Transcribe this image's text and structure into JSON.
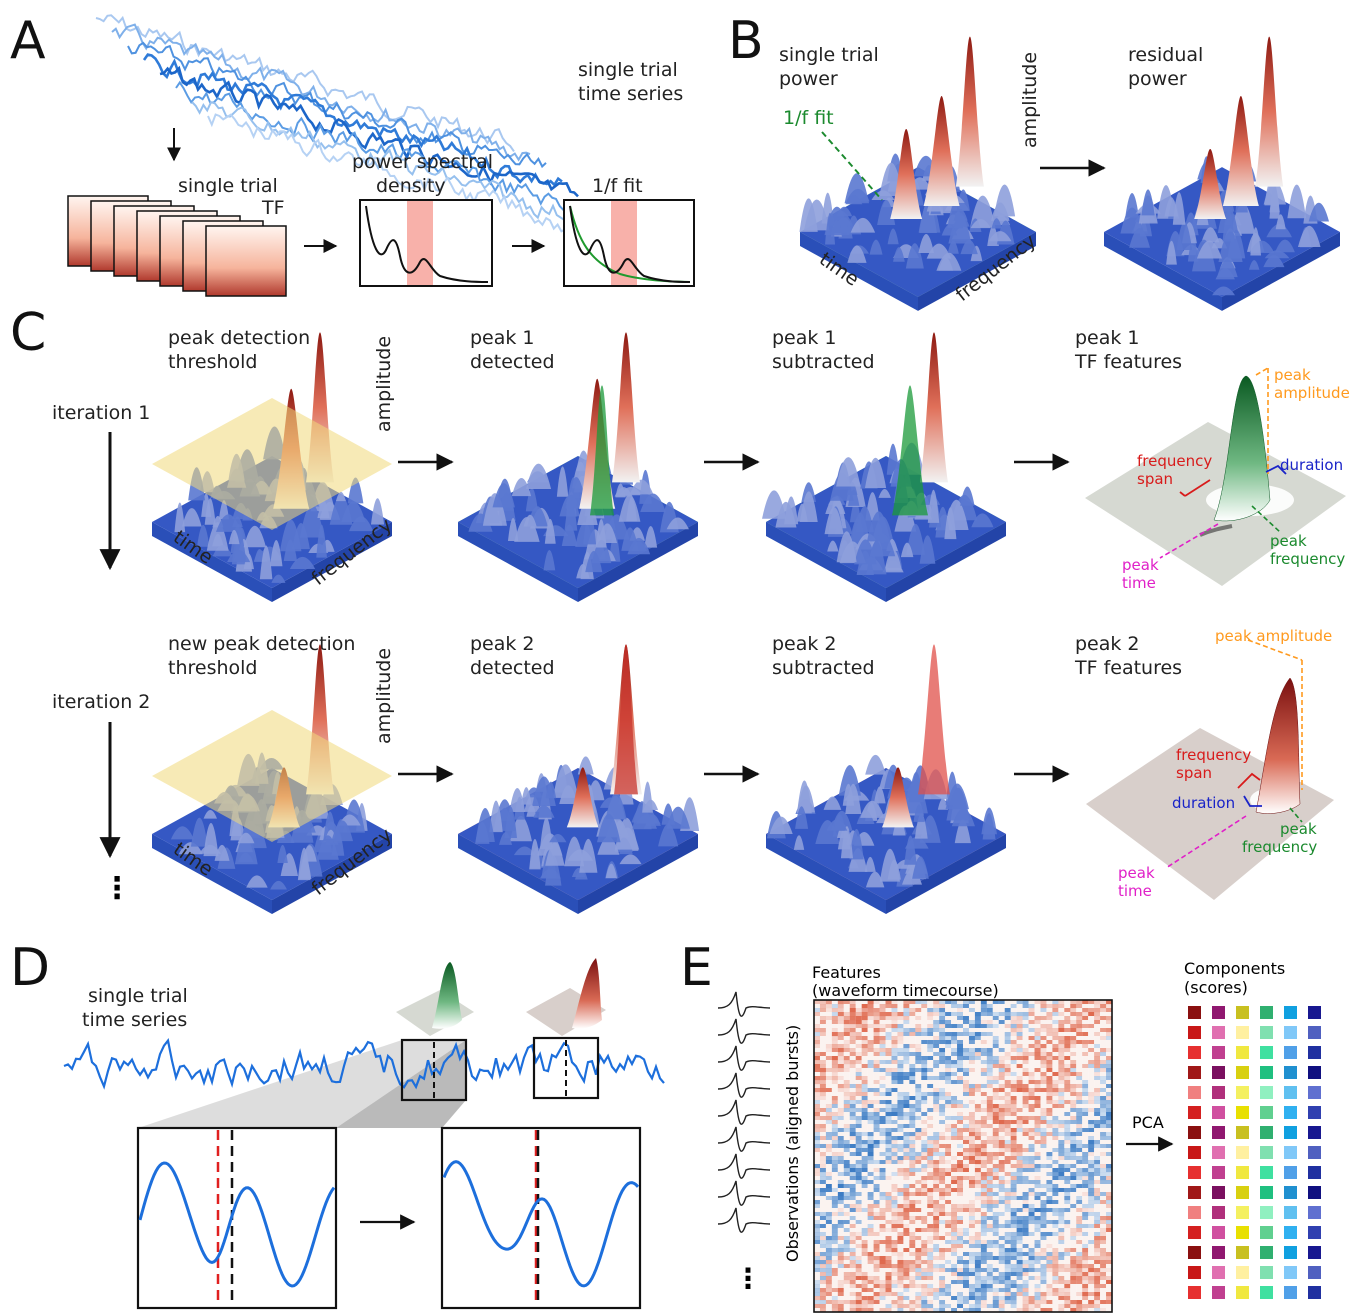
{
  "panels": {
    "a": "A",
    "b": "B",
    "c": "C",
    "d": "D",
    "e": "E"
  },
  "panel_a": {
    "series_label": [
      "single trial",
      "time series"
    ],
    "tf_label": [
      "single trial",
      "TF"
    ],
    "psd_label": [
      "power spectral",
      "density"
    ],
    "fit_label": "1/f fit"
  },
  "panel_b": {
    "power_label": [
      "single trial",
      "power"
    ],
    "fit_label": "1/f fit",
    "amplitude": "amplitude",
    "time": "time",
    "frequency": "frequency",
    "residual_label": [
      "residual",
      "power"
    ]
  },
  "panel_c": {
    "iteration1": "iteration 1",
    "iteration2": "iteration 2",
    "ellipsis": "⋮",
    "row1": {
      "threshold": [
        "peak detection",
        "threshold"
      ],
      "detected": [
        "peak 1",
        "detected"
      ],
      "subtracted": [
        "peak 1",
        "subtracted"
      ],
      "features": [
        "peak 1",
        "TF features"
      ]
    },
    "row2": {
      "threshold": [
        "new peak detection",
        "threshold"
      ],
      "detected": [
        "peak 2",
        "detected"
      ],
      "subtracted": [
        "peak 2",
        "subtracted"
      ],
      "features": [
        "peak 2",
        "TF features"
      ]
    },
    "amplitude": "amplitude",
    "time": "time",
    "frequency": "frequency",
    "feature_labels": {
      "peak_amplitude": [
        "peak",
        "amplitude"
      ],
      "peak_amplitude_inline": "peak amplitude",
      "frequency_span": [
        "frequency",
        "span"
      ],
      "duration": "duration",
      "peak_frequency": [
        "peak",
        "frequency"
      ],
      "peak_time": [
        "peak",
        "time"
      ]
    },
    "colors": {
      "amp": "#ff9a1f",
      "span": "#d81b1b",
      "dur": "#1a24c8",
      "freq": "#1b8a2e",
      "time": "#e020c8"
    }
  },
  "panel_d": {
    "series_label": [
      "single trial",
      "time series"
    ]
  },
  "panel_e": {
    "features": [
      "Features",
      "(waveform timecourse)"
    ],
    "observations": "Observations (aligned bursts)",
    "components": [
      "Components",
      "(scores)"
    ],
    "pca": "PCA",
    "ellipsis": "⋮"
  }
}
